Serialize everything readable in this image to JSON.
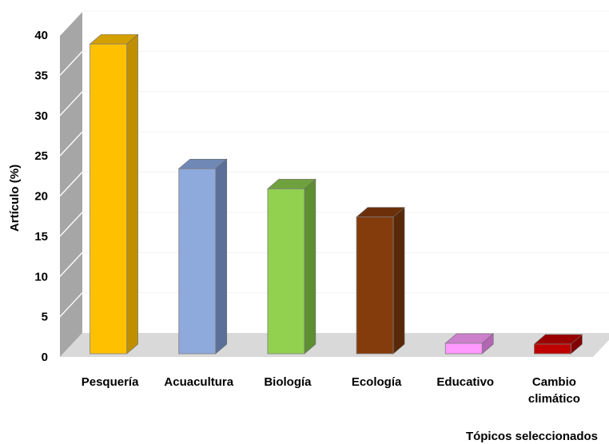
{
  "chart_data": {
    "type": "bar",
    "categories": [
      "Pesquería",
      "Acuacultura",
      "Biología",
      "Ecología",
      "Educativo",
      "Cambio climático"
    ],
    "values": [
      38.5,
      23,
      20.5,
      17,
      1.3,
      1.2
    ],
    "xlabel": "Tópicos seleccionados",
    "ylabel": "Artículo (%)",
    "ylim": [
      0,
      40
    ],
    "yticks": [
      0,
      5,
      10,
      15,
      20,
      25,
      30,
      35,
      40
    ],
    "grid": true,
    "legend": "none",
    "colors": [
      {
        "front": "#FFC000",
        "side": "#BF8F00",
        "top": "#D4A000"
      },
      {
        "front": "#8EA9DB",
        "side": "#5A7099",
        "top": "#6F88B5"
      },
      {
        "front": "#92D050",
        "side": "#5E8F33",
        "top": "#6FA23E"
      },
      {
        "front": "#843C0C",
        "side": "#592808",
        "top": "#6B300A"
      },
      {
        "front": "#FF99FF",
        "side": "#B366B3",
        "top": "#CC80CC"
      },
      {
        "front": "#C00000",
        "side": "#800000",
        "top": "#990000"
      }
    ]
  }
}
